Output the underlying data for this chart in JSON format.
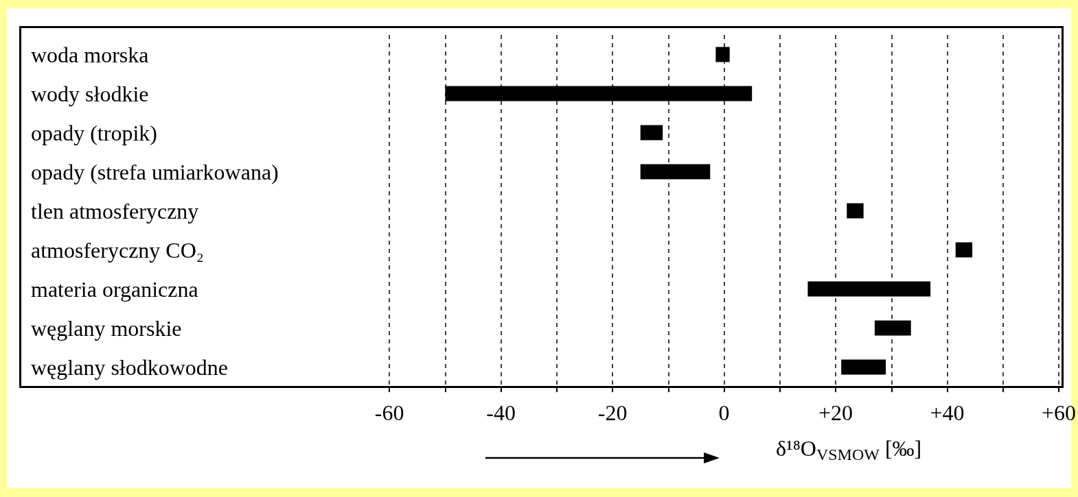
{
  "chart_data": {
    "type": "bar",
    "orientation": "horizontal",
    "xlabel": "δ¹⁸O$_{VSMOW}$ [‰]",
    "categories": [
      "woda morska",
      "wody słodkie",
      "opady (tropik)",
      "opady (strefa umiarkowana)",
      "tlen atmosferyczny",
      "atmosferyczny CO₂",
      "materia organiczna",
      "węglany morskie",
      "węglany słodkowodne"
    ],
    "base": [
      -1.5,
      -50,
      -15,
      -15,
      22,
      41.5,
      15,
      27,
      21
    ],
    "values": [
      2.5,
      55,
      4,
      12.5,
      3,
      3,
      22,
      6.5,
      8
    ],
    "color": "#000000",
    "xlim": [
      -126,
      60
    ],
    "xticks": [
      -60,
      {
        "value": -50,
        "label": null
      },
      -40,
      {
        "value": -30,
        "label": null
      },
      -20,
      {
        "value": -10,
        "label": null
      },
      0,
      {
        "value": 10,
        "label": null
      },
      {
        "value": 20,
        "label": "+20"
      },
      {
        "value": 30,
        "label": null
      },
      {
        "value": 40,
        "label": "+40"
      },
      {
        "value": 50,
        "label": null
      },
      {
        "value": 60,
        "label": "+60"
      }
    ],
    "grid": "x"
  }
}
